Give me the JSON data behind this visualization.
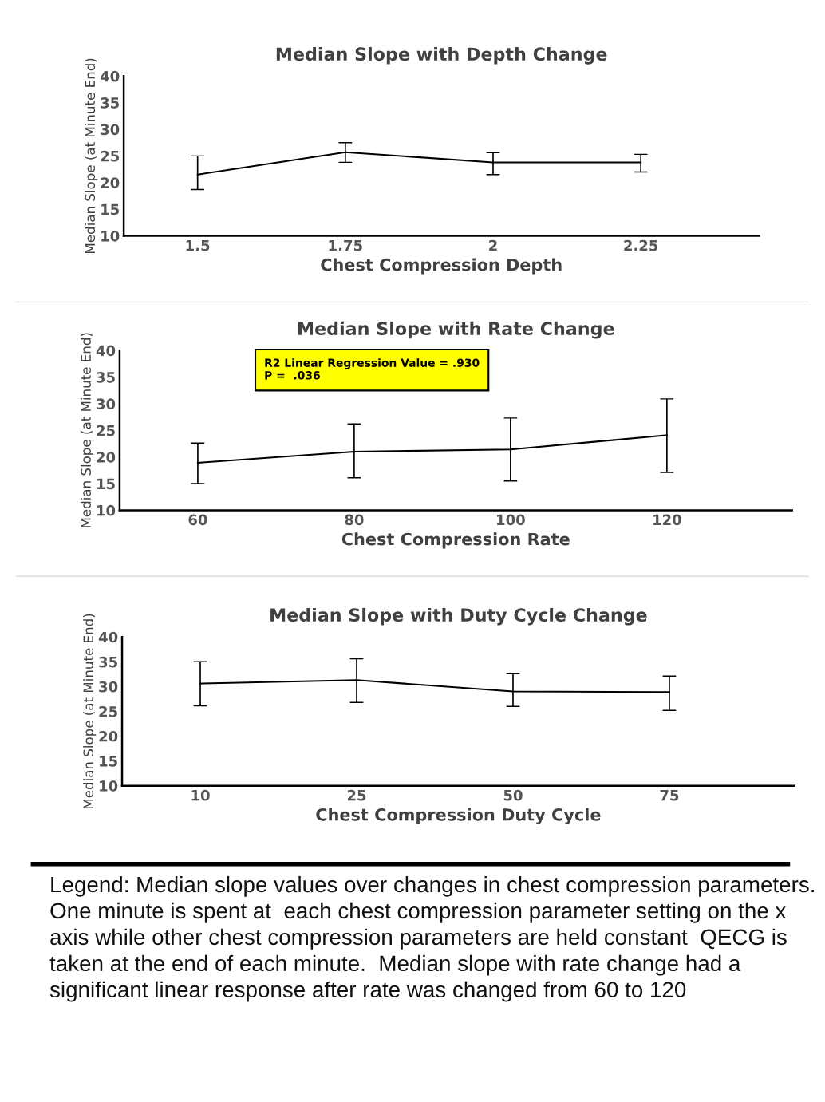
{
  "chart_data": [
    {
      "type": "line",
      "title": "Median Slope with Depth Change",
      "xlabel": "Chest Compression Depth",
      "ylabel": "Median Slope (at Minute End)",
      "categories": [
        "1.5",
        "1.75",
        "2",
        "2.25"
      ],
      "series": [
        {
          "color": "#000000",
          "values": [
            21.5,
            25.7,
            23.8,
            23.8
          ],
          "errors": [
            [
              18.7,
              25.0
            ],
            [
              23.8,
              27.5
            ],
            [
              21.5,
              25.6
            ],
            [
              22.0,
              25.3
            ]
          ]
        }
      ],
      "ylim": [
        10,
        40
      ],
      "yticks": [
        10,
        15,
        20,
        25,
        30,
        35,
        40
      ],
      "marker": "none",
      "line_style": "solid"
    },
    {
      "type": "line",
      "title": "Median Slope with Rate Change",
      "xlabel": "Chest Compression Rate",
      "ylabel": "Median Slope (at Minute End)",
      "categories": [
        "60",
        "80",
        "100",
        "120"
      ],
      "series": [
        {
          "color": "#000000",
          "values": [
            18.9,
            21.0,
            21.4,
            24.1
          ],
          "errors": [
            [
              15.0,
              22.6
            ],
            [
              16.1,
              26.2
            ],
            [
              15.5,
              27.3
            ],
            [
              17.1,
              30.9
            ]
          ]
        }
      ],
      "ylim": [
        10,
        40
      ],
      "yticks": [
        10,
        15,
        20,
        25,
        30,
        35,
        40
      ],
      "marker": "none",
      "line_style": "solid",
      "annotations": [
        "R2 Linear Regression Value = .930\nP =  .036"
      ]
    },
    {
      "type": "line",
      "title": "Median Slope with Duty Cycle Change",
      "xlabel": "Chest Compression Duty Cycle",
      "ylabel": "Median Slope (at Minute End)",
      "categories": [
        "10",
        "25",
        "50",
        "75"
      ],
      "series": [
        {
          "color": "#000000",
          "values": [
            30.6,
            31.3,
            29.0,
            28.9
          ],
          "errors": [
            [
              26.1,
              35.0
            ],
            [
              26.8,
              35.6
            ],
            [
              26.0,
              32.6
            ],
            [
              25.2,
              32.1
            ]
          ]
        }
      ],
      "ylim": [
        10,
        40
      ],
      "yticks": [
        10,
        15,
        20,
        25,
        30,
        35,
        40
      ],
      "marker": "none",
      "line_style": "solid",
      "annotations": [
        "Legend: Median slope values over changes in chest compression parameters.  One minute is spent at  each chest compression parameter setting on the x axis while other chest compression parameters are held constant  QECG is taken at the end of each minute.  Median slope with rate change had a significant linear response after rate was changed from 60 to 120"
      ]
    }
  ]
}
